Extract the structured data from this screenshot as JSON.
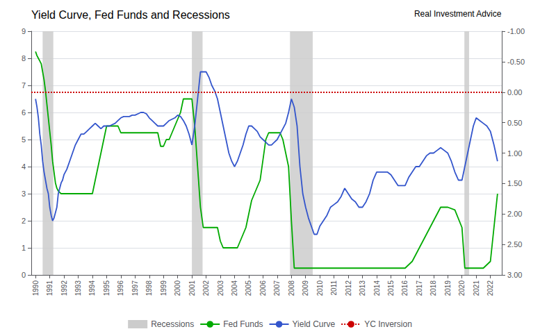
{
  "chart_data": {
    "type": "line",
    "title": "Yield Curve, Fed Funds and Recessions",
    "annotations": [
      "Real Investment Advice"
    ],
    "legend": "bottom",
    "grid": "y",
    "xlim": [
      1989.7,
      2022.8
    ],
    "xticks": [
      1990,
      1991,
      1992,
      1993,
      1994,
      1995,
      1996,
      1997,
      1998,
      1999,
      2000,
      2001,
      2002,
      2003,
      2004,
      2005,
      2006,
      2007,
      2008,
      2009,
      2010,
      2011,
      2012,
      2013,
      2014,
      2015,
      2016,
      2017,
      2018,
      2019,
      2020,
      2021,
      2022
    ],
    "ylim": [
      0,
      9
    ],
    "yticks": [
      0,
      1,
      2,
      3,
      4,
      5,
      6,
      7,
      8,
      9
    ],
    "y2lim": [
      3.0,
      -1.0
    ],
    "y2ticks": [
      {
        "value": 3.0,
        "label": "3.00"
      },
      {
        "value": 2.5,
        "label": "2.50"
      },
      {
        "value": 2.0,
        "label": "2.00"
      },
      {
        "value": 1.5,
        "label": "1.50"
      },
      {
        "value": 1.0,
        "label": "1.00"
      },
      {
        "value": 0.5,
        "label": "0.50"
      },
      {
        "value": 0.0,
        "label": "0.00"
      },
      {
        "value": -0.5,
        "label": "-0.50"
      },
      {
        "value": -1.0,
        "label": "-1.00"
      }
    ],
    "series": [
      {
        "name": "Recessions",
        "type": "span",
        "color": "#cccccc",
        "spans": [
          [
            1990.5,
            1991.25
          ],
          [
            2001.0,
            2001.75
          ],
          [
            2007.9,
            2009.5
          ],
          [
            2020.17,
            2020.5
          ]
        ]
      },
      {
        "name": "Fed Funds",
        "type": "line",
        "color": "#00aa00",
        "x": [
          1990.0,
          1990.1,
          1990.2,
          1990.3,
          1990.4,
          1990.5,
          1990.6,
          1990.7,
          1990.8,
          1990.9,
          1991.0,
          1991.1,
          1991.2,
          1991.3,
          1991.4,
          1991.5,
          1991.6,
          1991.7,
          1991.8,
          1991.9,
          1992.0,
          1992.2,
          1992.4,
          1992.6,
          1992.8,
          1993.0,
          1993.2,
          1993.4,
          1993.6,
          1993.8,
          1994.0,
          1994.2,
          1994.4,
          1994.6,
          1994.8,
          1995.0,
          1995.2,
          1995.4,
          1995.6,
          1995.8,
          1996.0,
          1996.2,
          1996.4,
          1996.6,
          1996.8,
          1997.0,
          1997.2,
          1997.4,
          1997.6,
          1997.8,
          1998.0,
          1998.2,
          1998.4,
          1998.6,
          1998.8,
          1999.0,
          1999.2,
          1999.4,
          1999.6,
          1999.8,
          2000.0,
          2000.2,
          2000.4,
          2000.6,
          2000.8,
          2001.0,
          2001.2,
          2001.4,
          2001.6,
          2001.8,
          2002.0,
          2002.2,
          2002.4,
          2002.6,
          2002.8,
          2003.0,
          2003.2,
          2003.4,
          2003.6,
          2003.8,
          2004.0,
          2004.2,
          2004.4,
          2004.6,
          2004.8,
          2005.0,
          2005.2,
          2005.4,
          2005.6,
          2005.8,
          2006.0,
          2006.2,
          2006.4,
          2006.6,
          2006.8,
          2007.0,
          2007.2,
          2007.4,
          2007.6,
          2007.8,
          2008.0,
          2008.2,
          2008.4,
          2008.6,
          2008.8,
          2009.0,
          2009.2,
          2009.4,
          2009.6,
          2009.8,
          2010.0,
          2010.5,
          2011.0,
          2011.5,
          2012.0,
          2012.5,
          2013.0,
          2013.5,
          2014.0,
          2014.5,
          2015.0,
          2015.5,
          2016.0,
          2016.5,
          2017.0,
          2017.5,
          2018.0,
          2018.5,
          2019.0,
          2019.5,
          2020.0,
          2020.2,
          2020.5,
          2020.8,
          2021.0,
          2021.5,
          2022.0,
          2022.5
        ],
        "values": [
          8.25,
          8.1,
          8.0,
          7.9,
          7.8,
          7.5,
          7.2,
          6.8,
          6.3,
          5.8,
          5.3,
          4.8,
          4.2,
          3.8,
          3.4,
          3.2,
          3.1,
          3.05,
          3.0,
          3.0,
          3.0,
          3.0,
          3.0,
          3.0,
          3.0,
          3.0,
          3.0,
          3.0,
          3.0,
          3.0,
          3.0,
          3.5,
          4.0,
          4.5,
          5.0,
          5.5,
          5.5,
          5.5,
          5.5,
          5.5,
          5.25,
          5.25,
          5.25,
          5.25,
          5.25,
          5.25,
          5.25,
          5.25,
          5.25,
          5.25,
          5.25,
          5.25,
          5.25,
          5.25,
          4.75,
          4.75,
          5.0,
          5.0,
          5.25,
          5.5,
          5.75,
          6.0,
          6.5,
          6.5,
          6.5,
          6.5,
          5.5,
          4.0,
          2.5,
          1.75,
          1.75,
          1.75,
          1.75,
          1.75,
          1.75,
          1.25,
          1.0,
          1.0,
          1.0,
          1.0,
          1.0,
          1.0,
          1.25,
          1.5,
          1.75,
          2.25,
          2.75,
          3.0,
          3.25,
          3.5,
          4.25,
          5.0,
          5.25,
          5.25,
          5.25,
          5.25,
          5.25,
          5.0,
          4.5,
          4.0,
          2.0,
          0.25,
          0.25,
          0.25,
          0.25,
          0.25,
          0.25,
          0.25,
          0.25,
          0.25,
          0.25,
          0.25,
          0.25,
          0.25,
          0.25,
          0.25,
          0.25,
          0.25,
          0.25,
          0.25,
          0.25,
          0.25,
          0.25,
          0.5,
          1.0,
          1.5,
          2.0,
          2.5,
          2.5,
          2.4,
          1.75,
          0.25,
          0.25,
          0.25,
          0.25,
          0.25,
          0.5,
          3.0
        ]
      },
      {
        "name": "Yield Curve",
        "type": "line",
        "color": "#3355cc",
        "x": [
          1990.0,
          1990.1,
          1990.2,
          1990.3,
          1990.4,
          1990.5,
          1990.6,
          1990.7,
          1990.8,
          1990.9,
          1991.0,
          1991.1,
          1991.2,
          1991.3,
          1991.4,
          1991.5,
          1991.6,
          1991.7,
          1991.8,
          1991.9,
          1992.0,
          1992.2,
          1992.4,
          1992.6,
          1992.8,
          1993.0,
          1993.2,
          1993.4,
          1993.6,
          1993.8,
          1994.0,
          1994.2,
          1994.4,
          1994.6,
          1994.8,
          1995.0,
          1995.2,
          1995.4,
          1995.6,
          1995.8,
          1996.0,
          1996.2,
          1996.4,
          1996.6,
          1996.8,
          1997.0,
          1997.2,
          1997.4,
          1997.6,
          1997.8,
          1998.0,
          1998.2,
          1998.4,
          1998.6,
          1998.8,
          1999.0,
          1999.2,
          1999.4,
          1999.6,
          1999.8,
          2000.0,
          2000.2,
          2000.4,
          2000.6,
          2000.8,
          2001.0,
          2001.2,
          2001.4,
          2001.6,
          2001.8,
          2002.0,
          2002.2,
          2002.4,
          2002.6,
          2002.8,
          2003.0,
          2003.2,
          2003.4,
          2003.6,
          2003.8,
          2004.0,
          2004.2,
          2004.4,
          2004.6,
          2004.8,
          2005.0,
          2005.2,
          2005.4,
          2005.6,
          2005.8,
          2006.0,
          2006.2,
          2006.4,
          2006.6,
          2006.8,
          2007.0,
          2007.2,
          2007.4,
          2007.6,
          2007.8,
          2008.0,
          2008.2,
          2008.4,
          2008.6,
          2008.8,
          2009.0,
          2009.2,
          2009.4,
          2009.6,
          2009.8,
          2010.0,
          2010.25,
          2010.5,
          2010.75,
          2011.0,
          2011.25,
          2011.5,
          2011.75,
          2012.0,
          2012.25,
          2012.5,
          2012.75,
          2013.0,
          2013.25,
          2013.5,
          2013.75,
          2014.0,
          2014.25,
          2014.5,
          2014.75,
          2015.0,
          2015.25,
          2015.5,
          2015.75,
          2016.0,
          2016.25,
          2016.5,
          2016.75,
          2017.0,
          2017.25,
          2017.5,
          2017.75,
          2018.0,
          2018.25,
          2018.5,
          2018.75,
          2019.0,
          2019.25,
          2019.5,
          2019.75,
          2020.0,
          2020.2,
          2020.4,
          2020.6,
          2020.8,
          2021.0,
          2021.25,
          2021.5,
          2021.75,
          2022.0,
          2022.25,
          2022.5
        ],
        "values": [
          6.5,
          6.2,
          5.8,
          5.2,
          4.8,
          4.2,
          3.8,
          3.5,
          3.2,
          3.0,
          2.5,
          2.2,
          2.0,
          2.1,
          2.3,
          2.5,
          3.0,
          3.2,
          3.4,
          3.5,
          3.7,
          3.9,
          4.2,
          4.5,
          4.8,
          5.0,
          5.2,
          5.2,
          5.3,
          5.4,
          5.5,
          5.6,
          5.5,
          5.4,
          5.5,
          5.5,
          5.5,
          5.55,
          5.6,
          5.7,
          5.8,
          5.85,
          5.85,
          5.85,
          5.9,
          5.9,
          5.95,
          6.0,
          6.0,
          5.95,
          5.8,
          5.7,
          5.6,
          5.5,
          5.5,
          5.5,
          5.6,
          5.7,
          5.75,
          5.8,
          5.9,
          5.85,
          5.7,
          5.5,
          5.2,
          4.8,
          5.5,
          6.5,
          7.5,
          7.5,
          7.5,
          7.3,
          7.0,
          6.8,
          6.5,
          6.0,
          5.5,
          5.0,
          4.5,
          4.2,
          4.0,
          4.2,
          4.5,
          4.8,
          5.2,
          5.5,
          5.5,
          5.4,
          5.3,
          5.1,
          5.0,
          4.9,
          4.8,
          4.8,
          4.9,
          5.0,
          5.2,
          5.4,
          5.6,
          6.0,
          6.5,
          6.2,
          5.5,
          4.0,
          3.0,
          2.5,
          2.1,
          1.8,
          1.5,
          1.5,
          1.8,
          2.0,
          2.2,
          2.5,
          2.6,
          2.7,
          2.9,
          3.2,
          3.0,
          2.8,
          2.7,
          2.5,
          2.5,
          2.7,
          3.0,
          3.5,
          3.8,
          3.8,
          3.8,
          3.8,
          3.7,
          3.5,
          3.3,
          3.3,
          3.3,
          3.6,
          3.8,
          4.0,
          4.0,
          4.2,
          4.4,
          4.5,
          4.5,
          4.6,
          4.7,
          4.6,
          4.5,
          4.2,
          3.8,
          3.5,
          3.5,
          4.0,
          4.5,
          5.0,
          5.5,
          5.8,
          5.7,
          5.6,
          5.5,
          5.3,
          4.8,
          4.2
        ]
      },
      {
        "name": "YC Inversion",
        "type": "hline",
        "color": "#cc0000",
        "line_style": "dotted",
        "y": 6.75
      }
    ]
  }
}
